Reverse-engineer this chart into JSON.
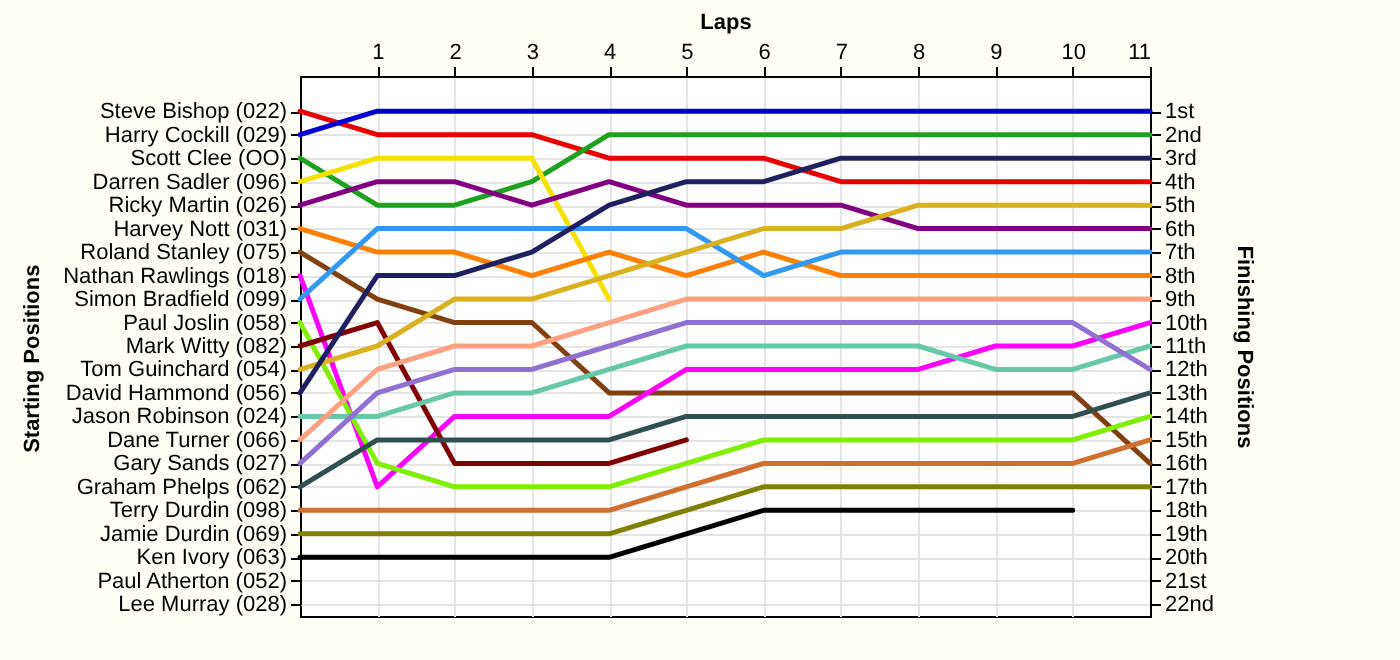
{
  "chart_data": {
    "type": "line",
    "xlabel": "Laps",
    "ylabel": "Finishing Positions",
    "annotations": [
      "Starting Positions"
    ],
    "x": [
      0,
      1,
      2,
      3,
      4,
      5,
      6,
      7,
      8,
      9,
      10,
      11
    ],
    "xlim": [
      0,
      11
    ],
    "xticks": [
      1,
      2,
      3,
      4,
      5,
      6,
      7,
      8,
      9,
      10,
      11
    ],
    "y_categories": [
      "Steve Bishop (022)",
      "Harry Cockill (029)",
      "Scott Clee (OO)",
      "Darren Sadler (096)",
      "Ricky Martin (026)",
      "Harvey Nott (031)",
      "Roland Stanley (075)",
      "Nathan Rawlings (018)",
      "Simon Bradfield (099)",
      "Paul Joslin (058)",
      "Mark Witty (082)",
      "Tom Guinchard (054)",
      "David Hammond (056)",
      "Jason Robinson (024)",
      "Dane Turner (066)",
      "Gary Sands (027)",
      "Graham Phelps (062)",
      "Terry Durdin (098)",
      "Jamie Durdin (069)",
      "Ken Ivory (063)",
      "Paul Atherton (052)",
      "Lee Murray (028)"
    ],
    "ylim": [
      22.5,
      -0.5
    ],
    "yticks": [
      {
        "value": 1,
        "label": "1st"
      },
      {
        "value": 2,
        "label": "2nd"
      },
      {
        "value": 3,
        "label": "3rd"
      },
      {
        "value": 4,
        "label": "4th"
      },
      {
        "value": 5,
        "label": "5th"
      },
      {
        "value": 6,
        "label": "6th"
      },
      {
        "value": 7,
        "label": "7th"
      },
      {
        "value": 8,
        "label": "8th"
      },
      {
        "value": 9,
        "label": "9th"
      },
      {
        "value": 10,
        "label": "10th"
      },
      {
        "value": 11,
        "label": "11th"
      },
      {
        "value": 12,
        "label": "12th"
      },
      {
        "value": 13,
        "label": "13th"
      },
      {
        "value": 14,
        "label": "14th"
      },
      {
        "value": 15,
        "label": "15th"
      },
      {
        "value": 16,
        "label": "16th"
      },
      {
        "value": 17,
        "label": "17th"
      },
      {
        "value": 18,
        "label": "18th"
      },
      {
        "value": 19,
        "label": "19th"
      },
      {
        "value": 20,
        "label": "20th"
      },
      {
        "value": 21,
        "label": "21st"
      },
      {
        "value": 22,
        "label": "22nd"
      }
    ],
    "grid": true,
    "marker": "none",
    "line_style": "solid",
    "series": [
      {
        "color": "#e80000",
        "values": [
          1,
          2,
          2,
          2,
          3,
          3,
          3,
          4,
          4,
          4,
          4,
          4
        ]
      },
      {
        "color": "#0000d0",
        "values": [
          2,
          1,
          1,
          1,
          1,
          1,
          1,
          1,
          1,
          1,
          1,
          1
        ]
      },
      {
        "color": "#20a020",
        "values": [
          3,
          5,
          5,
          4,
          2,
          2,
          2,
          2,
          2,
          2,
          2,
          2
        ]
      },
      {
        "color": "#f5e000",
        "values": [
          4,
          3,
          3,
          3,
          9,
          null,
          null,
          null,
          null,
          null,
          null,
          null
        ]
      },
      {
        "color": "#800080",
        "values": [
          5,
          4,
          4,
          5,
          4,
          5,
          5,
          5,
          6,
          6,
          6,
          6
        ]
      },
      {
        "color": "#ff8000",
        "values": [
          6,
          7,
          7,
          8,
          7,
          8,
          7,
          8,
          8,
          8,
          8,
          8
        ]
      },
      {
        "color": "#804010",
        "values": [
          7,
          9,
          10,
          10,
          13,
          13,
          13,
          13,
          13,
          13,
          13,
          16
        ]
      },
      {
        "color": "#ff00ff",
        "values": [
          8,
          17,
          14,
          14,
          14,
          12,
          12,
          12,
          12,
          11,
          11,
          10
        ]
      },
      {
        "color": "#3399ee",
        "values": [
          9,
          6,
          6,
          6,
          6,
          6,
          8,
          7,
          7,
          7,
          7,
          7
        ]
      },
      {
        "color": "#80ee00",
        "values": [
          10,
          16,
          17,
          17,
          17,
          16,
          15,
          15,
          15,
          15,
          15,
          14
        ]
      },
      {
        "color": "#800000",
        "values": [
          11,
          10,
          16,
          16,
          16,
          15,
          null,
          null,
          null,
          null,
          null,
          null
        ]
      },
      {
        "color": "#d8b020",
        "values": [
          12,
          11,
          9,
          9,
          8,
          7,
          6,
          6,
          5,
          5,
          5,
          5
        ]
      },
      {
        "color": "#202060",
        "values": [
          13,
          8,
          8,
          7,
          5,
          4,
          4,
          3,
          3,
          3,
          3,
          3
        ]
      },
      {
        "color": "#66c8a8",
        "values": [
          14,
          14,
          13,
          13,
          12,
          11,
          11,
          11,
          11,
          12,
          12,
          11
        ]
      },
      {
        "color": "#ffa080",
        "values": [
          15,
          12,
          11,
          11,
          10,
          9,
          9,
          9,
          9,
          9,
          9,
          9
        ]
      },
      {
        "color": "#9070d0",
        "values": [
          16,
          13,
          12,
          12,
          11,
          10,
          10,
          10,
          10,
          10,
          10,
          12
        ]
      },
      {
        "color": "#305050",
        "values": [
          17,
          15,
          15,
          15,
          15,
          14,
          14,
          14,
          14,
          14,
          14,
          13
        ]
      },
      {
        "color": "#d07030",
        "values": [
          18,
          18,
          18,
          18,
          18,
          17,
          16,
          16,
          16,
          16,
          16,
          15
        ]
      },
      {
        "color": "#808000",
        "values": [
          19,
          19,
          19,
          19,
          19,
          18,
          17,
          17,
          17,
          17,
          17,
          17
        ]
      },
      {
        "color": "#000000",
        "values": [
          20,
          20,
          20,
          20,
          20,
          19,
          18,
          18,
          18,
          18,
          18,
          null
        ]
      }
    ]
  }
}
